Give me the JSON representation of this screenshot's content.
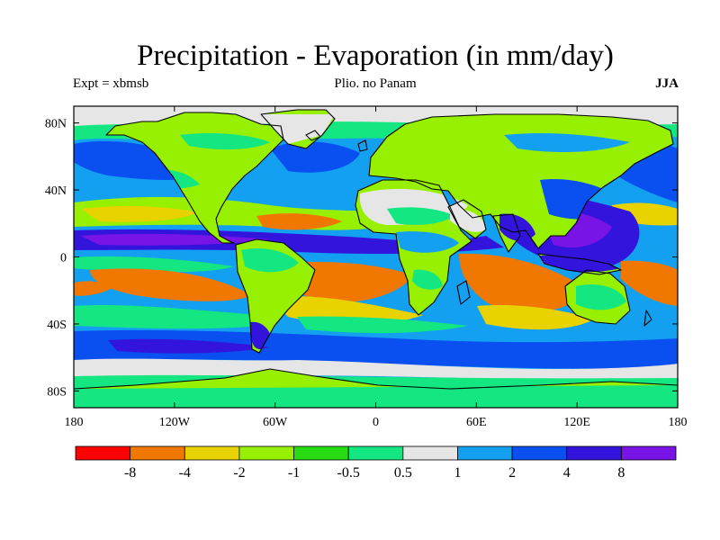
{
  "title": "Precipitation - Evaporation (in mm/day)",
  "subtitle_left": "Expt = xbmsb",
  "subtitle_center": "Plio. no Panam",
  "subtitle_right": "JJA",
  "lat_ticks": [
    {
      "label": "80N",
      "lat": 80
    },
    {
      "label": "40N",
      "lat": 40
    },
    {
      "label": "0",
      "lat": 0
    },
    {
      "label": "40S",
      "lat": -40
    },
    {
      "label": "80S",
      "lat": -80
    }
  ],
  "lon_ticks": [
    {
      "label": "180",
      "lon": -180
    },
    {
      "label": "120W",
      "lon": -120
    },
    {
      "label": "60W",
      "lon": -60
    },
    {
      "label": "0",
      "lon": 0
    },
    {
      "label": "60E",
      "lon": 60
    },
    {
      "label": "120E",
      "lon": 120
    },
    {
      "label": "180",
      "lon": 180
    }
  ],
  "lat_range": [
    -90,
    90
  ],
  "lon_range": [
    -180,
    180
  ],
  "colorbar": {
    "colors": [
      "#ff0000",
      "#f07800",
      "#e8d200",
      "#96f000",
      "#28dc14",
      "#14e682",
      "#e6e6e6",
      "#14a0f0",
      "#0a50f0",
      "#3214dc",
      "#7814e6"
    ],
    "labels": [
      "-8",
      "-4",
      "-2",
      "-1",
      "-0.5",
      "0.5",
      "1",
      "2",
      "4",
      "8"
    ]
  },
  "field_colors": {
    "ocean_base": "#14a0f0",
    "land_base": "#96f000",
    "coast": "#000000"
  }
}
